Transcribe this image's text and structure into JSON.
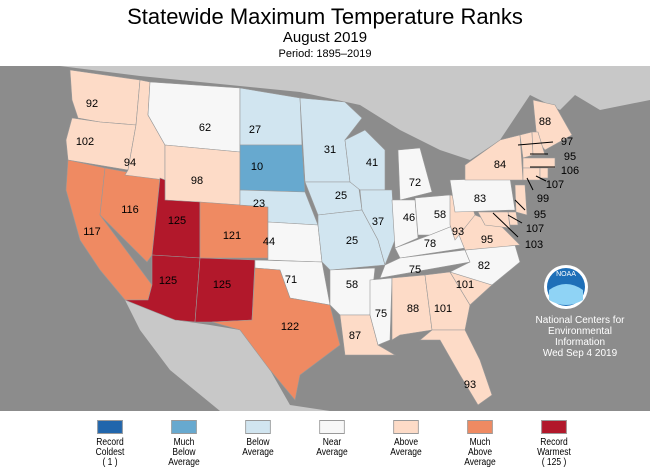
{
  "title": "Statewide Maximum Temperature Ranks",
  "subtitle": "August 2019",
  "period": "Period: 1895–2019",
  "colors": {
    "record_coldest": "#2166ac",
    "much_below": "#67a9cf",
    "below": "#d1e5f0",
    "near": "#f7f7f7",
    "above": "#fddbc7",
    "much_above": "#ef8a62",
    "record_warmest": "#b2182b"
  },
  "states": {
    "WA": "92",
    "OR": "102",
    "CA": "117",
    "NV": "116",
    "ID": "94",
    "MT": "62",
    "WY": "98",
    "UT": "125",
    "CO": "121",
    "AZ": "125",
    "NM": "125",
    "ND": "27",
    "SD": "10",
    "NE": "23",
    "KS": "44",
    "OK": "71",
    "TX": "122",
    "MN": "31",
    "IA": "25",
    "MO": "25",
    "AR": "58",
    "LA": "87",
    "WI": "41",
    "IL": "37",
    "MI": "72",
    "IN": "46",
    "OH": "58",
    "KY": "78",
    "TN": "75",
    "MS": "75",
    "AL": "88",
    "GA": "101",
    "SC": "101",
    "NC": "82",
    "VA": "95",
    "WV": "93",
    "FL": "93",
    "PA": "83",
    "NY": "84",
    "ME": "88",
    "VT": "97",
    "NH": "95",
    "MA": "106",
    "RI": "107",
    "CT": "99",
    "NJ": "95",
    "DE": "107",
    "MD": "103"
  },
  "legend": [
    {
      "l1": "Record",
      "l2": "Coldest",
      "l3": "( 1 )"
    },
    {
      "l1": "Much",
      "l2": "Below",
      "l3": "Average"
    },
    {
      "l1": "Below",
      "l2": "Average",
      "l3": ""
    },
    {
      "l1": "Near",
      "l2": "Average",
      "l3": ""
    },
    {
      "l1": "Above",
      "l2": "Average",
      "l3": ""
    },
    {
      "l1": "Much",
      "l2": "Above",
      "l3": "Average"
    },
    {
      "l1": "Record",
      "l2": "Warmest",
      "l3": "( 125 )"
    }
  ],
  "credit": {
    "logo": "NOAA",
    "l1": "National Centers for",
    "l2": "Environmental",
    "l3": "Information",
    "date": "Wed Sep  4 2019"
  }
}
